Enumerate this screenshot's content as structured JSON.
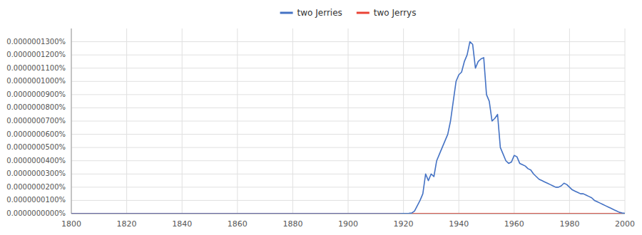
{
  "chart_data": {
    "type": "line",
    "series": [
      {
        "name": "two Jerries",
        "color": "#4472c4",
        "x": [
          1800,
          1810,
          1820,
          1830,
          1840,
          1850,
          1860,
          1870,
          1880,
          1890,
          1900,
          1910,
          1915,
          1918,
          1920,
          1921,
          1922,
          1923,
          1924,
          1925,
          1926,
          1927,
          1928,
          1929,
          1930,
          1931,
          1932,
          1933,
          1934,
          1935,
          1936,
          1937,
          1938,
          1939,
          1940,
          1941,
          1942,
          1943,
          1944,
          1945,
          1946,
          1947,
          1948,
          1949,
          1950,
          1951,
          1952,
          1953,
          1954,
          1955,
          1956,
          1957,
          1958,
          1959,
          1960,
          1961,
          1962,
          1963,
          1964,
          1965,
          1966,
          1967,
          1968,
          1969,
          1970,
          1971,
          1972,
          1973,
          1974,
          1975,
          1976,
          1977,
          1978,
          1979,
          1980,
          1981,
          1982,
          1983,
          1984,
          1985,
          1986,
          1987,
          1988,
          1989,
          1990,
          1991,
          1992,
          1993,
          1994,
          1995,
          1996,
          1997,
          1998,
          1999,
          2000
        ],
        "values": [
          0,
          0,
          0,
          0,
          0,
          0,
          0,
          0,
          0,
          0,
          0,
          0,
          0,
          0,
          5e-13,
          1e-12,
          2e-12,
          5e-12,
          2e-11,
          6e-11,
          1e-10,
          1.5e-10,
          3e-10,
          2.5e-10,
          3e-10,
          2.8e-10,
          4e-10,
          4.5e-10,
          5e-10,
          5.5e-10,
          6e-10,
          7e-10,
          8.5e-10,
          1e-09,
          1.05e-09,
          1.07e-09,
          1.15e-09,
          1.2e-09,
          1.3e-09,
          1.28e-09,
          1.1e-09,
          1.15e-09,
          1.17e-09,
          1.18e-09,
          9e-10,
          8.5e-10,
          7e-10,
          7.2e-10,
          7.5e-10,
          5e-10,
          4.5e-10,
          4e-10,
          3.8e-10,
          3.9e-10,
          4.4e-10,
          4.3e-10,
          3.8e-10,
          3.7e-10,
          3.6e-10,
          3.4e-10,
          3.3e-10,
          3e-10,
          2.8e-10,
          2.6e-10,
          2.5e-10,
          2.4e-10,
          2.3e-10,
          2.2e-10,
          2.1e-10,
          2e-10,
          2e-10,
          2.1e-10,
          2.3e-10,
          2.2e-10,
          2e-10,
          1.8e-10,
          1.7e-10,
          1.6e-10,
          1.5e-10,
          1.5e-10,
          1.4e-10,
          1.3e-10,
          1.2e-10,
          1e-10,
          9e-11,
          8e-11,
          7e-11,
          6e-11,
          5e-11,
          4e-11,
          3e-11,
          2e-11,
          1e-11,
          5e-12,
          2e-12
        ]
      },
      {
        "name": "two Jerrys",
        "color": "#ea4335",
        "x": [
          1800,
          2000
        ],
        "values": [
          0,
          0
        ]
      }
    ],
    "xlim": [
      1800,
      2000
    ],
    "xticks": [
      1800,
      1820,
      1840,
      1860,
      1880,
      1900,
      1920,
      1940,
      1960,
      1980,
      2000
    ],
    "ylim": [
      0,
      1.4e-09
    ],
    "yticks": [
      {
        "value": 0,
        "label": "0.0000000000%"
      },
      {
        "value": 1e-10,
        "label": "0.0000000100%"
      },
      {
        "value": 2e-10,
        "label": "0.0000000200%"
      },
      {
        "value": 3e-10,
        "label": "0.0000000300%"
      },
      {
        "value": 4e-10,
        "label": "0.0000000400%"
      },
      {
        "value": 5e-10,
        "label": "0.0000000500%"
      },
      {
        "value": 6e-10,
        "label": "0.0000000600%"
      },
      {
        "value": 7e-10,
        "label": "0.0000000700%"
      },
      {
        "value": 8e-10,
        "label": "0.0000000800%"
      },
      {
        "value": 9e-10,
        "label": "0.0000000900%"
      },
      {
        "value": 1e-09,
        "label": "0.0000001000%"
      },
      {
        "value": 1.1e-09,
        "label": "0.0000001100%"
      },
      {
        "value": 1.2e-09,
        "label": "0.0000001200%"
      },
      {
        "value": 1.3e-09,
        "label": "0.0000001300%"
      }
    ],
    "grid": true,
    "legend": "top"
  }
}
